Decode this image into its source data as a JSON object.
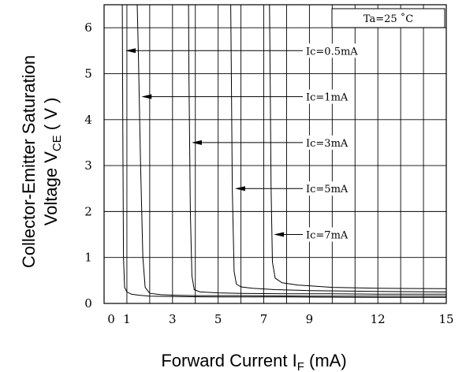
{
  "chart_data": {
    "type": "line",
    "title": "",
    "xlabel": {
      "main": "Forward Current I",
      "sub": "F",
      "unit": " (mA)"
    },
    "ylabel": {
      "line1": "Collector-Emitter Saturation",
      "line2_main": "Voltage V",
      "line2_sub": "CE",
      "line2_unit": " ( V )"
    },
    "xlim": [
      0,
      15
    ],
    "ylim": [
      0,
      6.5
    ],
    "xticks": [
      {
        "value": 0,
        "label": "0"
      },
      {
        "value": 1,
        "label": "1"
      },
      {
        "value": 3,
        "label": "3"
      },
      {
        "value": 5,
        "label": "5"
      },
      {
        "value": 7,
        "label": "7"
      },
      {
        "value": 9,
        "label": "9"
      },
      {
        "value": 12,
        "label": "12"
      },
      {
        "value": 15,
        "label": "15"
      }
    ],
    "yticks": [
      {
        "value": 0,
        "label": "0"
      },
      {
        "value": 1,
        "label": "1"
      },
      {
        "value": 2,
        "label": "2"
      },
      {
        "value": 3,
        "label": "3"
      },
      {
        "value": 4,
        "label": "4"
      },
      {
        "value": 5,
        "label": "5"
      },
      {
        "value": 6,
        "label": "6"
      }
    ],
    "grid": true,
    "condition": "Ta=25 ˚C",
    "series": [
      {
        "name": "Ic=0.5mA",
        "label_y": 5.5,
        "arrow_x": 0.9,
        "x": [
          0.8,
          0.82,
          0.85,
          0.9,
          1.0,
          1.2,
          1.5,
          2.0,
          3.0,
          5.0,
          8.0,
          12.0,
          15.0
        ],
        "y": [
          6.5,
          4.0,
          1.0,
          0.35,
          0.25,
          0.2,
          0.18,
          0.16,
          0.15,
          0.14,
          0.14,
          0.13,
          0.13
        ]
      },
      {
        "name": "Ic=1mA",
        "label_y": 4.5,
        "arrow_x": 1.6,
        "x": [
          1.45,
          1.5,
          1.6,
          1.7,
          1.8,
          2.0,
          2.5,
          3.0,
          4.0,
          6.0,
          9.0,
          12.0,
          15.0
        ],
        "y": [
          6.5,
          5.5,
          3.0,
          1.0,
          0.35,
          0.22,
          0.19,
          0.18,
          0.17,
          0.17,
          0.16,
          0.16,
          0.16
        ]
      },
      {
        "name": "Ic=3mA",
        "label_y": 3.5,
        "arrow_x": 3.8,
        "x": [
          3.7,
          3.72,
          3.78,
          3.85,
          3.95,
          4.2,
          5.0,
          6.0,
          8.0,
          10.0,
          12.0,
          15.0
        ],
        "y": [
          6.5,
          5.0,
          2.0,
          0.6,
          0.3,
          0.25,
          0.23,
          0.22,
          0.21,
          0.21,
          0.2,
          0.2
        ]
      },
      {
        "name": "Ic=5mA",
        "label_y": 2.5,
        "arrow_x": 5.7,
        "x": [
          5.55,
          5.58,
          5.62,
          5.7,
          5.8,
          6.0,
          6.5,
          7.5,
          9.0,
          12.0,
          15.0
        ],
        "y": [
          6.5,
          5.0,
          2.5,
          0.7,
          0.42,
          0.36,
          0.33,
          0.3,
          0.28,
          0.26,
          0.25
        ]
      },
      {
        "name": "Ic=7mA",
        "label_y": 1.5,
        "arrow_x": 7.4,
        "x": [
          7.25,
          7.28,
          7.32,
          7.38,
          7.5,
          7.8,
          8.5,
          10.0,
          12.0,
          15.0
        ],
        "y": [
          6.5,
          5.0,
          2.5,
          0.9,
          0.55,
          0.45,
          0.4,
          0.35,
          0.33,
          0.32
        ]
      }
    ]
  }
}
